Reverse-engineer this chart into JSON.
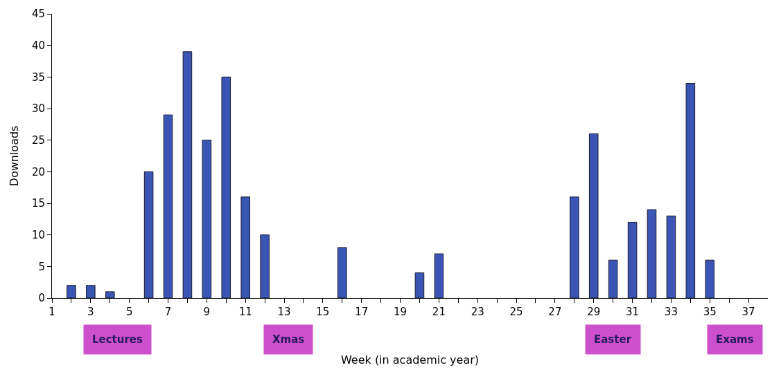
{
  "chart_data": {
    "type": "bar",
    "xlabel": "Week (in academic year)",
    "ylabel": "Downloads",
    "x": [
      2,
      3,
      4,
      6,
      7,
      8,
      9,
      10,
      11,
      12,
      16,
      20,
      21,
      28,
      29,
      30,
      31,
      32,
      33,
      34,
      35
    ],
    "values": [
      2,
      2,
      1,
      20,
      29,
      39,
      25,
      35,
      16,
      10,
      8,
      4,
      7,
      16,
      26,
      6,
      12,
      14,
      13,
      34,
      6
    ],
    "color": "#3a55b4",
    "xlim": [
      1,
      38
    ],
    "xticks": [
      1,
      {
        "value": 2,
        "label": null
      },
      3,
      {
        "value": 4,
        "label": null
      },
      5,
      {
        "value": 6,
        "label": null
      },
      7,
      {
        "value": 8,
        "label": null
      },
      9,
      {
        "value": 10,
        "label": null
      },
      11,
      {
        "value": 12,
        "label": null
      },
      13,
      {
        "value": 14,
        "label": null
      },
      15,
      {
        "value": 16,
        "label": null
      },
      17,
      {
        "value": 18,
        "label": null
      },
      19,
      {
        "value": 20,
        "label": null
      },
      21,
      {
        "value": 22,
        "label": null
      },
      23,
      {
        "value": 24,
        "label": null
      },
      25,
      {
        "value": 26,
        "label": null
      },
      27,
      {
        "value": 28,
        "label": null
      },
      29,
      {
        "value": 30,
        "label": null
      },
      31,
      {
        "value": 32,
        "label": null
      },
      33,
      {
        "value": 34,
        "label": null
      },
      35,
      {
        "value": 36,
        "label": null
      },
      37
    ],
    "ylim": [
      0,
      45
    ],
    "yticks": [
      0,
      5,
      10,
      15,
      20,
      25,
      30,
      35,
      40,
      45
    ],
    "annotations": [
      "Lectures",
      "Xmas",
      "Easter",
      "Exams"
    ]
  }
}
